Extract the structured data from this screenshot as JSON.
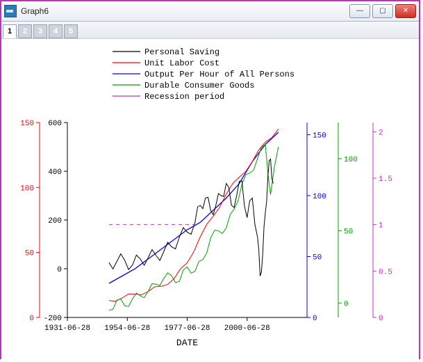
{
  "window": {
    "title": "Graph6",
    "buttons": {
      "min": "—",
      "max": "▢",
      "close": "✕"
    }
  },
  "tabs": [
    "1",
    "2",
    "3",
    "4",
    "5"
  ],
  "active_tab": 0,
  "chart": {
    "type": "line",
    "background_color": "#ffffff",
    "plot_border_color": "#000000",
    "xlabel": "DATE",
    "label_fontsize": 13,
    "font_family": "Consolas, Courier New, monospace",
    "legend": {
      "position": "top-inside",
      "fontsize": 12,
      "items": [
        {
          "label": "Personal Saving",
          "color": "#000000"
        },
        {
          "label": "Unit Labor Cost",
          "color": "#ff0000"
        },
        {
          "label": "Output Per Hour of All Persons",
          "color": "#0000ff"
        },
        {
          "label": "Durable Consumer Goods",
          "color": "#00a000"
        },
        {
          "label": "Recession period",
          "color": "#c030c0"
        }
      ]
    },
    "x": {
      "ticks": [
        "1931-06-28",
        "1954-06-28",
        "1977-06-28",
        "2000-06-28"
      ],
      "tick_color": "#000000",
      "fontsize": 11,
      "range_years": [
        1931,
        2023
      ]
    },
    "y_left_outer": {
      "color": "#ff0000",
      "ticks": [
        0,
        50,
        100,
        150
      ],
      "range": [
        0,
        150
      ]
    },
    "y_left_inner": {
      "color": "#000000",
      "ticks": [
        -200,
        0,
        200,
        400,
        600
      ],
      "range": [
        -200,
        600
      ]
    },
    "y_right_1": {
      "color": "#0000ff",
      "ticks": [
        0,
        50,
        100,
        150
      ],
      "range": [
        0,
        160
      ]
    },
    "y_right_2": {
      "color": "#00a000",
      "ticks": [
        0,
        50,
        100
      ],
      "range": [
        -10,
        125
      ]
    },
    "y_right_3": {
      "color": "#c030c0",
      "ticks": [
        0.0,
        0.5,
        1.0,
        1.5,
        2.0
      ],
      "range": [
        0.0,
        2.1
      ]
    },
    "series": {
      "personal_saving": {
        "color": "#000000",
        "width": 1,
        "points": [
          [
            1947,
            25
          ],
          [
            1950,
            30
          ],
          [
            1953,
            35
          ],
          [
            1956,
            15
          ],
          [
            1959,
            40
          ],
          [
            1962,
            45
          ],
          [
            1965,
            55
          ],
          [
            1968,
            70
          ],
          [
            1971,
            90
          ],
          [
            1974,
            130
          ],
          [
            1977,
            150
          ],
          [
            1980,
            190
          ],
          [
            1982,
            260
          ],
          [
            1984,
            290
          ],
          [
            1986,
            240
          ],
          [
            1988,
            260
          ],
          [
            1990,
            300
          ],
          [
            1992,
            350
          ],
          [
            1994,
            260
          ],
          [
            1996,
            300
          ],
          [
            1998,
            360
          ],
          [
            2000,
            210
          ],
          [
            2002,
            290
          ],
          [
            2004,
            130
          ],
          [
            2005,
            -30
          ],
          [
            2006,
            60
          ],
          [
            2007,
            230
          ],
          [
            2008,
            380
          ],
          [
            2009,
            450
          ],
          [
            2010,
            350
          ]
        ]
      },
      "unit_labor_cost": {
        "color": "#ff0000",
        "width": 1,
        "points": [
          [
            1947,
            13
          ],
          [
            1952,
            15
          ],
          [
            1957,
            18
          ],
          [
            1962,
            20
          ],
          [
            1967,
            24
          ],
          [
            1972,
            30
          ],
          [
            1977,
            42
          ],
          [
            1982,
            62
          ],
          [
            1987,
            78
          ],
          [
            1992,
            95
          ],
          [
            1997,
            108
          ],
          [
            2002,
            120
          ],
          [
            2007,
            135
          ],
          [
            2012,
            145
          ]
        ]
      },
      "output_per_hour": {
        "color": "#0000ff",
        "width": 1.3,
        "points": [
          [
            1947,
            28
          ],
          [
            1952,
            34
          ],
          [
            1957,
            40
          ],
          [
            1962,
            48
          ],
          [
            1967,
            56
          ],
          [
            1972,
            64
          ],
          [
            1977,
            72
          ],
          [
            1982,
            78
          ],
          [
            1987,
            88
          ],
          [
            1992,
            98
          ],
          [
            1997,
            110
          ],
          [
            2002,
            128
          ],
          [
            2007,
            142
          ],
          [
            2012,
            152
          ]
        ]
      },
      "durable_goods": {
        "color": "#00a000",
        "width": 1,
        "points": [
          [
            1947,
            -5
          ],
          [
            1950,
            2
          ],
          [
            1953,
            -2
          ],
          [
            1956,
            3
          ],
          [
            1959,
            5
          ],
          [
            1962,
            8
          ],
          [
            1965,
            13
          ],
          [
            1968,
            17
          ],
          [
            1971,
            19
          ],
          [
            1974,
            15
          ],
          [
            1977,
            25
          ],
          [
            1980,
            22
          ],
          [
            1983,
            30
          ],
          [
            1986,
            45
          ],
          [
            1989,
            50
          ],
          [
            1992,
            52
          ],
          [
            1995,
            65
          ],
          [
            1998,
            82
          ],
          [
            2001,
            90
          ],
          [
            2004,
            100
          ],
          [
            2007,
            110
          ],
          [
            2009,
            75
          ],
          [
            2012,
            108
          ]
        ]
      },
      "recession": {
        "color": "#c030c0",
        "width": 1,
        "dash": "5,5",
        "points": [
          [
            1947,
            1.0
          ],
          [
            1980,
            1.0
          ]
        ]
      }
    }
  }
}
